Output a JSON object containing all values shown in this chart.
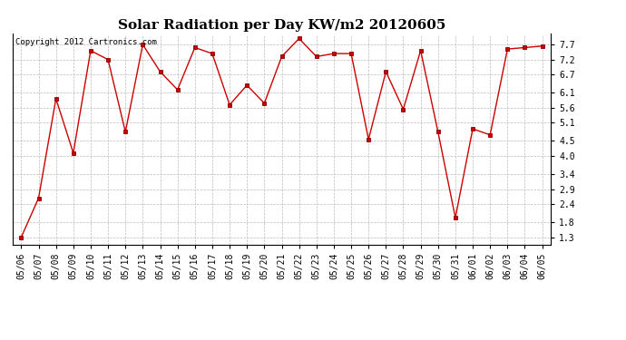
{
  "title": "Solar Radiation per Day KW/m2 20120605",
  "copyright_text": "Copyright 2012 Cartronics.com",
  "x_labels": [
    "05/06",
    "05/07",
    "05/08",
    "05/09",
    "05/10",
    "05/11",
    "05/12",
    "05/13",
    "05/14",
    "05/15",
    "05/16",
    "05/17",
    "05/18",
    "05/19",
    "05/20",
    "05/21",
    "05/22",
    "05/23",
    "05/24",
    "05/25",
    "05/26",
    "05/27",
    "05/28",
    "05/29",
    "05/30",
    "05/31",
    "06/01",
    "06/02",
    "06/03",
    "06/04",
    "06/05"
  ],
  "y_values": [
    1.3,
    2.6,
    5.9,
    4.1,
    7.5,
    7.2,
    4.8,
    7.7,
    6.8,
    6.2,
    7.6,
    7.4,
    5.7,
    6.35,
    5.75,
    7.3,
    7.9,
    7.3,
    7.4,
    7.4,
    4.55,
    6.8,
    5.55,
    7.5,
    4.8,
    1.95,
    4.9,
    4.7,
    7.55,
    7.6,
    7.65
  ],
  "y_ticks": [
    1.3,
    1.8,
    2.4,
    2.9,
    3.4,
    4.0,
    4.5,
    5.1,
    5.6,
    6.1,
    6.7,
    7.2,
    7.7
  ],
  "ylim": [
    1.05,
    8.05
  ],
  "line_color": "#cc0000",
  "marker": "s",
  "marker_size": 2.5,
  "background_color": "#ffffff",
  "grid_color": "#bbbbbb",
  "title_fontsize": 11,
  "tick_fontsize": 7,
  "copyright_fontsize": 6.5
}
